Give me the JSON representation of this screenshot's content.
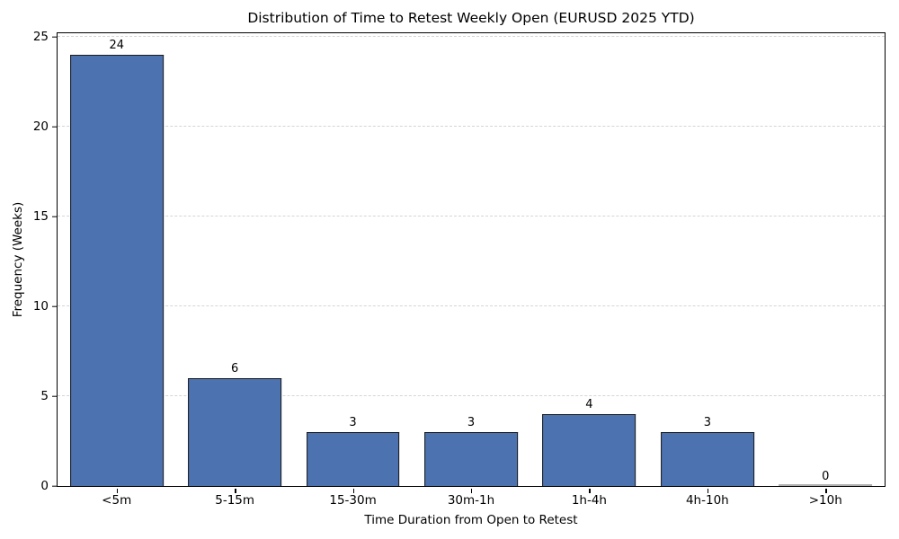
{
  "chart_data": {
    "type": "bar",
    "title": "Distribution of Time to Retest Weekly Open (EURUSD 2025 YTD)",
    "xlabel": "Time Duration from Open to Retest",
    "ylabel": "Frequency (Weeks)",
    "categories": [
      "<5m",
      "5-15m",
      "15-30m",
      "30m-1h",
      "1h-4h",
      "4h-10h",
      ">10h"
    ],
    "values": [
      24,
      6,
      3,
      3,
      4,
      3,
      0
    ],
    "bar_value_labels": [
      "24",
      "6",
      "3",
      "3",
      "4",
      "3",
      "0"
    ],
    "yticks": [
      0,
      5,
      10,
      15,
      20,
      25
    ],
    "ylim": [
      0,
      25.2
    ],
    "grid": "horizontal-dashed",
    "legend": "none",
    "colors": {
      "bar_fill": "#4C72B0",
      "bar_edge": "#1a1a1a",
      "zero_bar_line": "#b0b0b0",
      "gridline": "#d5d5d5",
      "spine": "#000000",
      "text": "#000000",
      "background": "#ffffff"
    }
  }
}
